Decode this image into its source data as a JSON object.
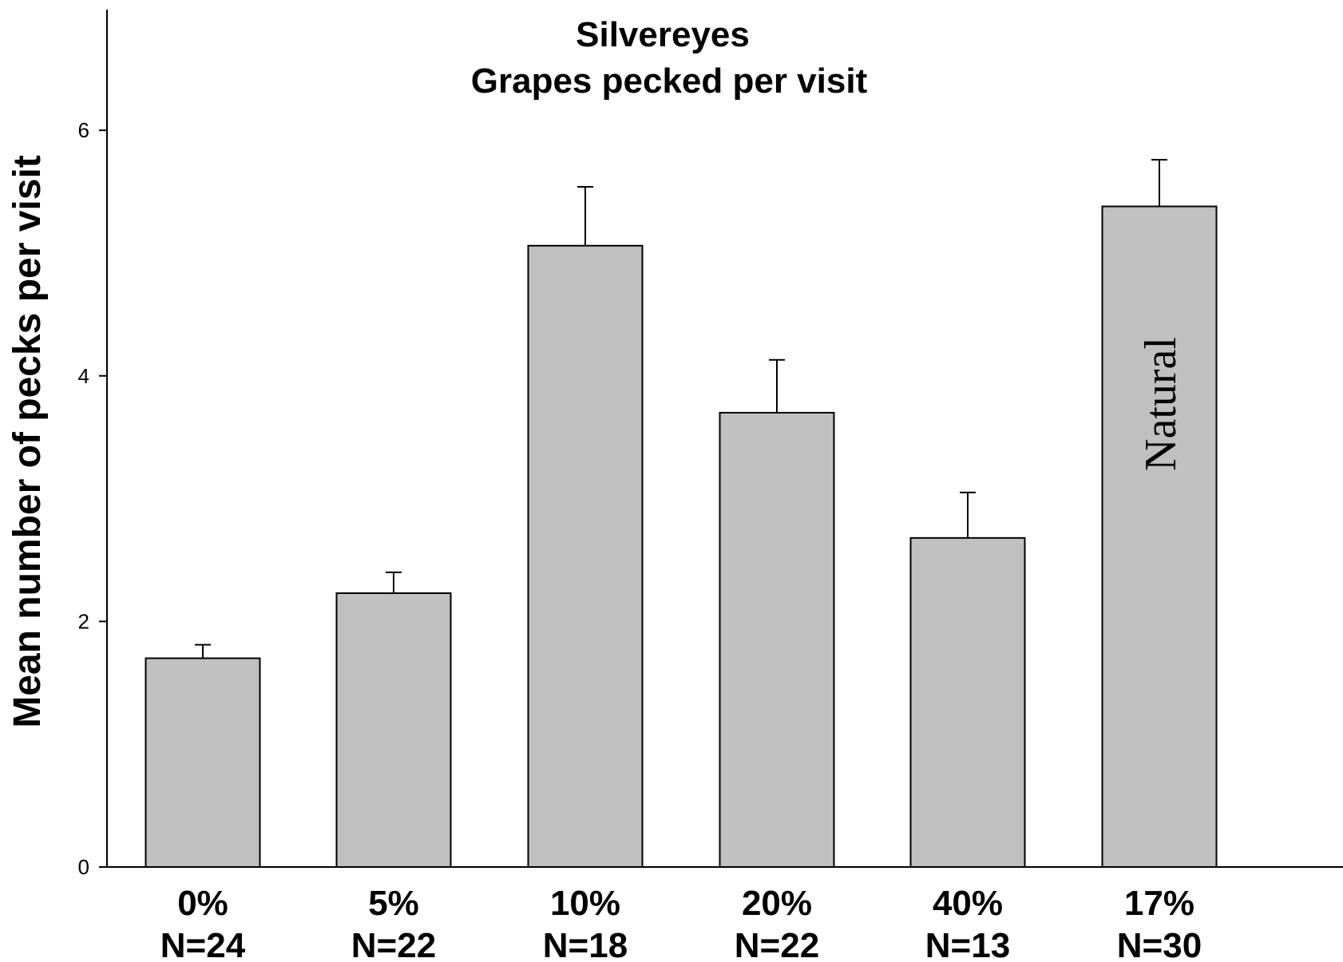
{
  "chart_data": {
    "type": "bar",
    "title": "Silvereyes",
    "subtitle": "Grapes pecked per visit",
    "xlabel": "",
    "ylabel": "Mean number of pecks per visit",
    "ylim": [
      0,
      7
    ],
    "yticks": [
      0,
      2,
      4,
      6
    ],
    "categories": [
      "0%",
      "5%",
      "10%",
      "20%",
      "40%",
      "17%"
    ],
    "sample_sizes": [
      "N=24",
      "N=22",
      "N=18",
      "N=22",
      "N=13",
      "N=30"
    ],
    "values": [
      1.7,
      2.23,
      5.06,
      3.7,
      2.68,
      5.38
    ],
    "errors": [
      0.11,
      0.17,
      0.48,
      0.43,
      0.37,
      0.38
    ],
    "annotations": [
      {
        "category_index": 5,
        "text": "Natural"
      }
    ],
    "bar_color": "#c0c0c0",
    "grid": false,
    "legend": "none"
  }
}
